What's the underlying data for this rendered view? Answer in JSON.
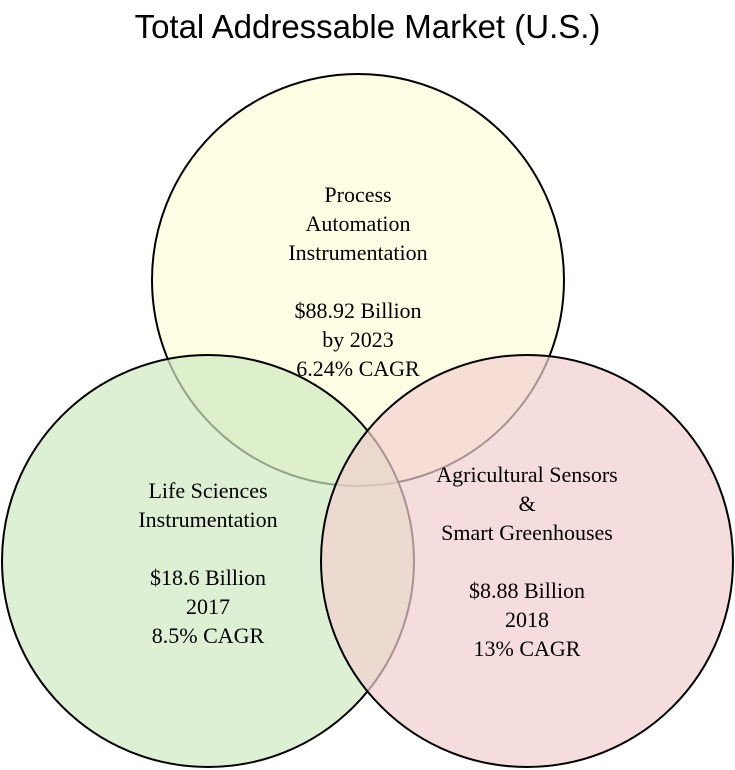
{
  "title": "Total Addressable Market (U.S.)",
  "colors": {
    "process_fill": "#fdfdd8",
    "life_fill": "#cfe9c0",
    "agri_fill": "#f2cfcf",
    "stroke": "#000000"
  },
  "circles": {
    "process": {
      "lines": [
        "Process",
        "Automation",
        "Instrumentation",
        "",
        "$88.92 Billion",
        "by 2023",
        "6.24% CAGR"
      ]
    },
    "life": {
      "lines": [
        "Life Sciences",
        "Instrumentation",
        "",
        "$18.6 Billion",
        "2017",
        "8.5% CAGR"
      ]
    },
    "agri": {
      "lines": [
        "Agricultural Sensors",
        "&",
        "Smart Greenhouses",
        "",
        "$8.88 Billion",
        "2018",
        "13% CAGR"
      ]
    }
  }
}
